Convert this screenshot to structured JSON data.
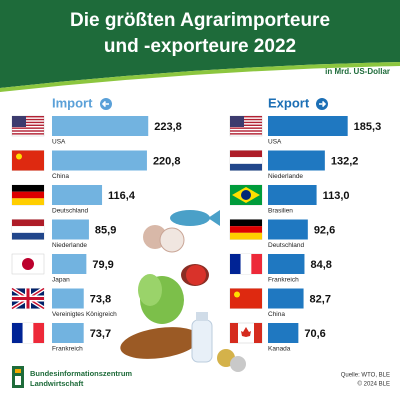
{
  "title": [
    "Die größten Agrarimporteure",
    "und -exporteure 2022"
  ],
  "unit": "in Mrd. US-Dollar",
  "chart_data": [
    {
      "type": "bar",
      "title": "Import",
      "color": "#72b3e0",
      "categories": [
        "USA",
        "China",
        "Deutschland",
        "Niederlande",
        "Japan",
        "Vereinigtes Königreich",
        "Frankreich"
      ],
      "values": [
        223.8,
        220.8,
        116.4,
        85.9,
        79.9,
        73.8,
        73.7
      ],
      "value_labels": [
        "223,8",
        "220,8",
        "116,4",
        "85,9",
        "79,9",
        "73,8",
        "73,7"
      ]
    },
    {
      "type": "bar",
      "title": "Export",
      "color": "#1f78c1",
      "categories": [
        "USA",
        "Niederlande",
        "Brasilien",
        "Deutschland",
        "Frankreich",
        "China",
        "Kanada"
      ],
      "values": [
        185.3,
        132.2,
        113.0,
        92.6,
        84.8,
        82.7,
        70.6
      ],
      "value_labels": [
        "185,3",
        "132,2",
        "113,0",
        "92,6",
        "84,8",
        "82,7",
        "70,6"
      ]
    }
  ],
  "publisher": [
    "Bundesinformationszentrum",
    "Landwirtschaft"
  ],
  "source": "Quelle: WTO, BLE",
  "copyright": "© 2024 BLE"
}
